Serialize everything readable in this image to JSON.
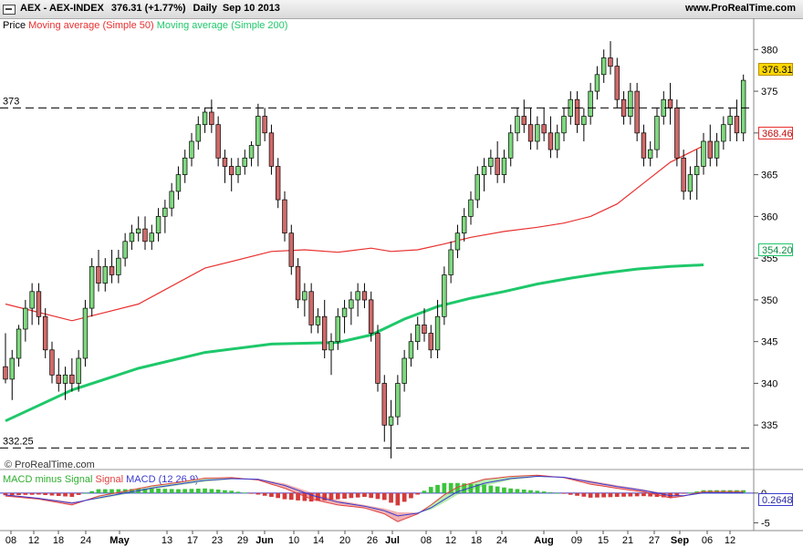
{
  "header": {
    "symbol": "AEX - AEX-INDEX",
    "last_change": "376.31 (+1.77%)",
    "period_date": "Daily  Sep 10 2013",
    "site": "www.ProRealTime.com"
  },
  "legend": {
    "price": "Price",
    "ma50": "Moving average (Simple 50)",
    "ma200": "Moving average (Simple 200)"
  },
  "macd_legend": {
    "macd_minus_signal": "MACD minus Signal",
    "signal": "Signal",
    "macd": "MACD (12 26 9)"
  },
  "watermark": "© ProRealTime.com",
  "colors": {
    "up": "#7fd87f",
    "down": "#d06a6a",
    "ma50": "#e8302f",
    "ma200": "#1ec86a",
    "macd": "#3a3ad0",
    "signal": "#e04040",
    "fill_pos": "#b8ecb0",
    "fill_neg": "#f2b0b0"
  },
  "chart_data": [
    {
      "type": "candlestick",
      "ylim": [
        330,
        382
      ],
      "yticks": [
        335,
        340,
        345,
        350,
        355,
        360,
        365,
        370,
        375,
        380
      ],
      "xticks": [
        "08",
        "12",
        "18",
        "24",
        "May",
        "13",
        "17",
        "23",
        "29",
        "Jun",
        "10",
        "14",
        "20",
        "26",
        "Jul",
        "08",
        "12",
        "18",
        "24",
        "Aug",
        "09",
        "15",
        "21",
        "27",
        "Sep",
        "06",
        "12"
      ],
      "reference_lines": [
        {
          "label": "373",
          "value": 373
        },
        {
          "label": "332.25",
          "value": 332.25
        }
      ],
      "price_labels": {
        "last": "376.31",
        "ma50": "368.46",
        "ma200": "354.20"
      },
      "candles": [
        [
          342,
          346,
          340,
          340.5
        ],
        [
          340.5,
          344,
          338,
          343
        ],
        [
          343,
          347,
          342,
          346.5
        ],
        [
          346.5,
          350,
          345,
          349
        ],
        [
          349,
          352,
          347,
          351
        ],
        [
          351,
          352,
          347,
          348
        ],
        [
          348,
          349,
          343,
          344
        ],
        [
          344,
          345,
          340,
          341
        ],
        [
          341,
          343,
          339,
          340
        ],
        [
          340,
          342,
          338,
          341
        ],
        [
          341,
          343,
          339,
          340
        ],
        [
          340,
          344,
          339,
          343
        ],
        [
          343,
          350,
          342,
          349
        ],
        [
          349,
          355,
          348,
          354
        ],
        [
          354,
          356,
          351,
          352
        ],
        [
          352,
          355,
          351,
          354
        ],
        [
          354,
          356,
          352,
          353
        ],
        [
          353,
          356,
          352,
          355
        ],
        [
          355,
          358,
          354,
          357
        ],
        [
          357,
          359,
          356,
          358
        ],
        [
          358,
          360,
          357,
          358.5
        ],
        [
          358.5,
          360,
          356,
          357
        ],
        [
          357,
          359,
          356,
          358
        ],
        [
          358,
          361,
          357,
          360
        ],
        [
          360,
          362,
          358,
          361
        ],
        [
          361,
          364,
          360,
          363
        ],
        [
          363,
          366,
          362,
          365
        ],
        [
          365,
          368,
          364,
          367
        ],
        [
          367,
          370,
          366,
          369
        ],
        [
          369,
          372,
          368,
          371
        ],
        [
          371,
          373,
          370,
          372.5
        ],
        [
          372.5,
          374,
          370,
          371
        ],
        [
          371,
          372,
          366,
          367
        ],
        [
          367,
          368,
          364,
          366
        ],
        [
          366,
          367,
          363,
          365
        ],
        [
          365,
          367,
          364,
          366
        ],
        [
          366,
          368,
          365,
          367
        ],
        [
          367,
          369,
          366,
          368.5
        ],
        [
          368.5,
          373.5,
          366,
          372
        ],
        [
          372,
          373,
          369,
          370
        ],
        [
          370,
          371,
          365,
          366
        ],
        [
          366,
          367,
          361,
          362
        ],
        [
          362,
          363,
          357,
          358
        ],
        [
          358,
          359,
          353,
          354
        ],
        [
          354,
          355,
          349,
          350
        ],
        [
          350,
          352,
          348,
          351
        ],
        [
          351,
          352,
          346,
          347
        ],
        [
          347,
          349,
          346,
          348
        ],
        [
          348,
          350,
          343,
          344
        ],
        [
          344,
          346,
          341,
          345
        ],
        [
          345,
          349,
          344,
          348
        ],
        [
          348,
          350,
          346,
          349
        ],
        [
          349,
          351,
          347,
          350
        ],
        [
          350,
          352,
          348,
          351
        ],
        [
          351,
          352,
          349,
          350
        ],
        [
          350,
          351,
          345,
          346
        ],
        [
          346,
          347,
          339,
          340
        ],
        [
          340,
          341,
          333,
          335
        ],
        [
          335,
          338,
          331,
          336
        ],
        [
          336,
          341,
          335,
          340
        ],
        [
          340,
          344,
          339,
          343
        ],
        [
          343,
          346,
          342,
          345
        ],
        [
          345,
          348,
          344,
          347
        ],
        [
          347,
          349,
          345,
          346
        ],
        [
          346,
          347,
          343,
          344
        ],
        [
          344,
          350,
          343,
          348
        ],
        [
          348,
          354,
          347,
          353
        ],
        [
          353,
          357,
          352,
          356
        ],
        [
          356,
          359,
          355,
          358
        ],
        [
          358,
          361,
          357,
          360
        ],
        [
          360,
          363,
          359,
          362
        ],
        [
          362,
          366,
          361,
          365
        ],
        [
          365,
          367,
          363,
          366
        ],
        [
          366,
          368,
          365,
          367
        ],
        [
          367,
          369,
          364,
          365
        ],
        [
          365,
          368,
          364,
          367
        ],
        [
          367,
          371,
          366,
          370
        ],
        [
          370,
          373,
          369,
          372
        ],
        [
          372,
          374,
          370,
          371
        ],
        [
          371,
          373,
          368,
          369
        ],
        [
          369,
          372,
          368,
          371
        ],
        [
          371,
          373,
          369,
          370
        ],
        [
          370,
          372,
          367,
          368
        ],
        [
          368,
          371,
          367,
          370
        ],
        [
          370,
          373,
          369,
          372
        ],
        [
          372,
          375,
          371,
          374
        ],
        [
          374,
          375,
          370,
          371
        ],
        [
          371,
          373,
          369,
          372
        ],
        [
          372,
          376,
          371,
          375
        ],
        [
          375,
          378,
          374,
          377
        ],
        [
          377,
          380,
          376,
          379
        ],
        [
          379,
          381,
          377,
          378
        ],
        [
          378,
          379,
          373,
          374
        ],
        [
          374,
          375,
          371,
          372
        ],
        [
          372,
          376,
          371,
          375
        ],
        [
          375,
          376,
          369,
          370
        ],
        [
          370,
          371,
          366,
          367
        ],
        [
          367,
          369,
          366,
          368
        ],
        [
          368,
          373,
          367,
          372
        ],
        [
          372,
          375,
          371,
          374
        ],
        [
          374,
          376,
          371,
          373
        ],
        [
          373,
          374,
          366,
          367
        ],
        [
          367,
          368,
          362,
          363
        ],
        [
          363,
          366,
          362,
          365
        ],
        [
          365,
          368,
          362,
          366
        ],
        [
          366,
          370,
          365,
          369
        ],
        [
          369,
          371,
          366,
          367
        ],
        [
          367,
          370,
          366,
          369
        ],
        [
          369,
          372,
          368,
          371
        ],
        [
          371,
          373,
          369,
          372
        ],
        [
          372,
          374,
          369,
          370
        ],
        [
          370,
          377,
          369,
          376.31
        ]
      ],
      "ma50": [
        [
          0,
          349.5
        ],
        [
          10,
          347.5
        ],
        [
          20,
          349.5
        ],
        [
          30,
          353.8
        ],
        [
          40,
          355.8
        ],
        [
          45,
          356
        ],
        [
          50,
          355.7
        ],
        [
          55,
          356.2
        ],
        [
          58,
          355.8
        ],
        [
          62,
          356
        ],
        [
          66,
          356.7
        ],
        [
          70,
          357.5
        ],
        [
          75,
          358.2
        ],
        [
          80,
          358.7
        ],
        [
          84,
          359.2
        ],
        [
          88,
          360
        ],
        [
          92,
          361.5
        ],
        [
          96,
          364
        ],
        [
          100,
          366.5
        ],
        [
          105,
          368.46
        ]
      ],
      "ma200": [
        [
          0,
          335.5
        ],
        [
          10,
          339.2
        ],
        [
          20,
          341.8
        ],
        [
          30,
          343.7
        ],
        [
          40,
          344.7
        ],
        [
          50,
          344.9
        ],
        [
          55,
          345.8
        ],
        [
          60,
          347.7
        ],
        [
          65,
          349.2
        ],
        [
          70,
          350.2
        ],
        [
          75,
          351
        ],
        [
          80,
          351.9
        ],
        [
          85,
          352.6
        ],
        [
          90,
          353.2
        ],
        [
          95,
          353.7
        ],
        [
          100,
          354
        ],
        [
          105,
          354.2
        ]
      ]
    },
    {
      "type": "line",
      "name": "MACD (12 26 9)",
      "ylim": [
        -6,
        3.5
      ],
      "yticks": [
        -5,
        0
      ],
      "last_label": "0.2648",
      "macd": [
        [
          0,
          -0.5
        ],
        [
          5,
          -1
        ],
        [
          10,
          -2
        ],
        [
          14,
          -0.5
        ],
        [
          18,
          0.3
        ],
        [
          22,
          1.2
        ],
        [
          26,
          1.8
        ],
        [
          30,
          2.5
        ],
        [
          34,
          2.6
        ],
        [
          38,
          2.2
        ],
        [
          42,
          0.8
        ],
        [
          46,
          -1
        ],
        [
          50,
          -2
        ],
        [
          54,
          -2.5
        ],
        [
          57,
          -3.5
        ],
        [
          59,
          -4.8
        ],
        [
          62,
          -3.5
        ],
        [
          64,
          -2
        ],
        [
          66,
          -0.3
        ],
        [
          68,
          1
        ],
        [
          72,
          2.3
        ],
        [
          76,
          2.8
        ],
        [
          80,
          3
        ],
        [
          84,
          2.6
        ],
        [
          88,
          1.5
        ],
        [
          92,
          0.8
        ],
        [
          96,
          0.2
        ],
        [
          100,
          -0.8
        ],
        [
          102,
          -0.5
        ],
        [
          105,
          0.2648
        ]
      ],
      "signal": [
        [
          0,
          -0.2
        ],
        [
          5,
          -0.8
        ],
        [
          10,
          -1.5
        ],
        [
          14,
          -1
        ],
        [
          18,
          -0.2
        ],
        [
          22,
          0.6
        ],
        [
          26,
          1.3
        ],
        [
          30,
          1.9
        ],
        [
          34,
          2.3
        ],
        [
          38,
          2.4
        ],
        [
          42,
          1.6
        ],
        [
          46,
          0.1
        ],
        [
          50,
          -1.2
        ],
        [
          54,
          -2
        ],
        [
          57,
          -2.6
        ],
        [
          59,
          -3.2
        ],
        [
          62,
          -3.3
        ],
        [
          64,
          -2.8
        ],
        [
          66,
          -1.6
        ],
        [
          68,
          -0.3
        ],
        [
          72,
          1.2
        ],
        [
          76,
          2.2
        ],
        [
          80,
          2.7
        ],
        [
          84,
          2.7
        ],
        [
          88,
          2.1
        ],
        [
          92,
          1.3
        ],
        [
          96,
          0.6
        ],
        [
          100,
          -0.2
        ],
        [
          102,
          -0.4
        ],
        [
          105,
          -0.1
        ]
      ]
    }
  ]
}
